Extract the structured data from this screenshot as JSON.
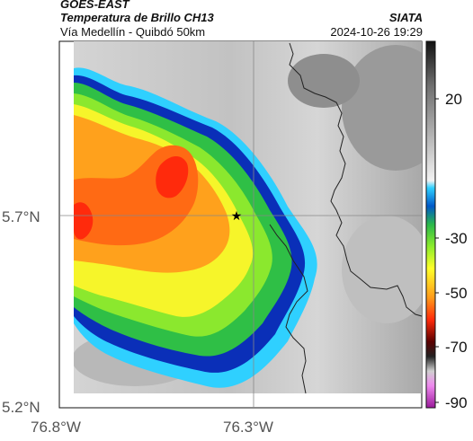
{
  "header": {
    "satellite": "GOES-EAST",
    "product": "Temperatura de Brillo CH13",
    "brand": "SIATA",
    "region": "Vía Medellín - Quibdó 50km",
    "timestamp": "2024-10-26 19:29"
  },
  "axes": {
    "lat_labels": [
      "5.7°N",
      "5.2°N"
    ],
    "lon_labels": [
      "76.8°W",
      "76.3°W"
    ]
  },
  "colorbar": {
    "tick_labels": [
      "20",
      "-30",
      "-50",
      "-70",
      "-90"
    ]
  },
  "marker": {
    "symbol": "star",
    "color": "#000000"
  },
  "colors": {
    "axis_text": "#555555",
    "grid": "#888888"
  }
}
